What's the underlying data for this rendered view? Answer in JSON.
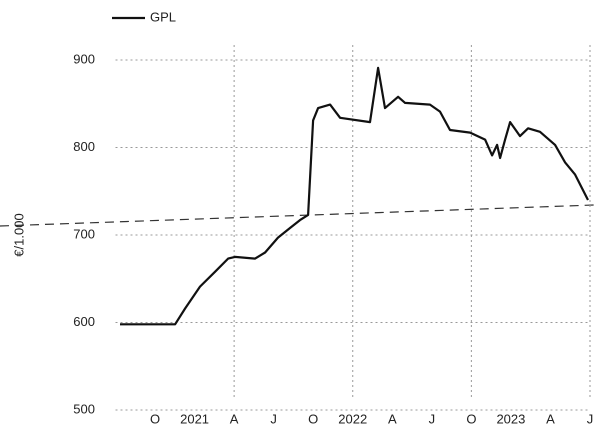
{
  "chart_data": {
    "type": "line",
    "ylabel": "€/1.000",
    "series": [
      {
        "name": "GPL",
        "color": "#111111",
        "x": [
          -2.66,
          1.52,
          2.28,
          3.41,
          4.55,
          5.54,
          6.07,
          7.59,
          8.35,
          9.33,
          10.24,
          11.0,
          11.61,
          11.99,
          12.37,
          13.28,
          14.04,
          16.31,
          16.92,
          17.45,
          18.44,
          18.97,
          20.86,
          21.62,
          22.38,
          23.9,
          25.04,
          25.57,
          25.95,
          26.18,
          26.56,
          26.94,
          27.69,
          28.3,
          29.21,
          30.35,
          31.11,
          31.87,
          32.85
        ],
        "values": [
          598,
          598,
          616,
          641,
          658,
          673,
          675,
          673,
          680,
          697,
          708,
          717,
          723,
          831,
          845,
          849,
          834,
          829,
          891,
          845,
          858,
          851,
          849,
          841,
          820,
          817,
          809,
          791,
          803,
          788,
          809,
          829,
          813,
          822,
          818,
          803,
          783,
          769,
          740
        ]
      }
    ],
    "xlim": [
      -3,
      33
    ],
    "xticks": [
      {
        "value": 0,
        "label": "O"
      },
      {
        "value": 3,
        "label": "2021"
      },
      {
        "value": 6,
        "label": "A"
      },
      {
        "value": 9,
        "label": "J"
      },
      {
        "value": 12,
        "label": "O"
      },
      {
        "value": 15,
        "label": "2022"
      },
      {
        "value": 18,
        "label": "A"
      },
      {
        "value": 21,
        "label": "J"
      },
      {
        "value": 24,
        "label": "O"
      },
      {
        "value": 27,
        "label": "2023"
      },
      {
        "value": 30,
        "label": "A"
      },
      {
        "value": 33,
        "label": "J"
      }
    ],
    "ylim": [
      500,
      900
    ],
    "yticks": [
      500,
      600,
      700,
      800,
      900
    ],
    "grid": true
  }
}
